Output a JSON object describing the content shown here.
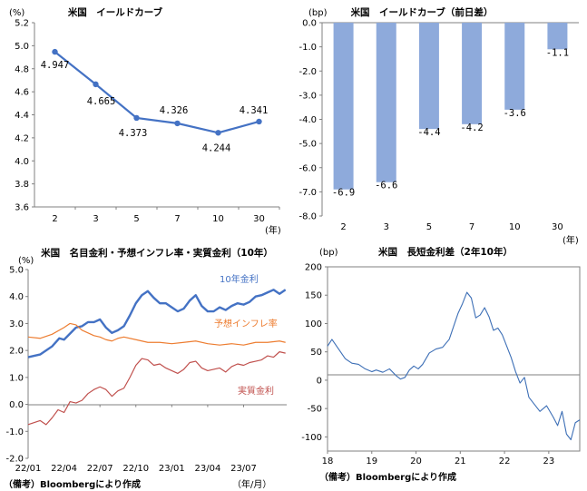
{
  "colors": {
    "line_blue": "#4472c4",
    "bar_blue": "#8eaadb",
    "orange": "#ed7d31",
    "red": "#c0504d",
    "spread_blue": "#3d6fb6",
    "axis": "#808080",
    "grid": "#d9d9d9"
  },
  "chart_data": [
    {
      "id": "yield_curve",
      "type": "line",
      "title": "米国　イールドカーブ",
      "ylabel": "(%)",
      "xlabel": "(年)",
      "categories": [
        "2",
        "3",
        "5",
        "7",
        "10",
        "30"
      ],
      "values": [
        4.947,
        4.665,
        4.373,
        4.326,
        4.244,
        4.341
      ],
      "value_labels": [
        "4.947",
        "4.665",
        "4.373",
        "4.326",
        "4.244",
        "4.341"
      ],
      "ylim": [
        3.6,
        5.2
      ],
      "yticks": [
        "3.6",
        "3.8",
        "4.0",
        "4.2",
        "4.4",
        "4.6",
        "4.8",
        "5.0",
        "5.2"
      ],
      "grid": false
    },
    {
      "id": "yield_change",
      "type": "bar",
      "title": "米国　イールドカーブ（前日差）",
      "ylabel": "(bp)",
      "xlabel": "(年)",
      "categories": [
        "2",
        "3",
        "5",
        "7",
        "10",
        "30"
      ],
      "values": [
        -6.9,
        -6.6,
        -4.4,
        -4.2,
        -3.6,
        -1.1
      ],
      "value_labels": [
        "-6.9",
        "-6.6",
        "-4.4",
        "-4.2",
        "-3.6",
        "-1.1"
      ],
      "ylim": [
        -8.0,
        0.0
      ],
      "yticks": [
        "0.0",
        "-1.0",
        "-2.0",
        "-3.0",
        "-4.0",
        "-5.0",
        "-6.0",
        "-7.0",
        "-8.0"
      ],
      "grid": false
    },
    {
      "id": "nominal_real",
      "type": "line",
      "title": "米国　名目金利・予想インフレ率・実質金利（10年）",
      "ylabel": "(%)",
      "xlabel": "（年/月）",
      "x_ticks": [
        "22/01",
        "22/04",
        "22/07",
        "22/10",
        "23/01",
        "23/04",
        "23/07"
      ],
      "ylim": [
        -2.0,
        5.0
      ],
      "yticks": [
        "5.0",
        "4.0",
        "3.0",
        "2.0",
        "1.0",
        "0.0",
        "-1.0",
        "-2.0"
      ],
      "x_range_months": [
        0,
        21.6
      ],
      "series": [
        {
          "name": "10年金利",
          "label": "10年金利",
          "x": [
            0,
            1,
            2,
            2.6,
            3,
            4,
            4.5,
            5,
            5.5,
            6,
            6.5,
            7,
            7.5,
            8,
            8.5,
            9,
            9.5,
            10,
            10.5,
            11,
            11.5,
            12,
            12.5,
            13,
            13.5,
            14,
            14.5,
            15,
            15.5,
            16,
            16.5,
            17,
            17.5,
            18,
            18.5,
            19,
            19.5,
            20,
            20.5,
            21,
            21.5
          ],
          "values": [
            1.75,
            1.85,
            2.15,
            2.45,
            2.4,
            2.85,
            2.9,
            3.05,
            3.05,
            3.15,
            2.85,
            2.65,
            2.75,
            2.9,
            3.3,
            3.75,
            4.05,
            4.2,
            3.95,
            3.75,
            3.75,
            3.6,
            3.45,
            3.55,
            3.85,
            4.05,
            3.65,
            3.45,
            3.45,
            3.6,
            3.5,
            3.65,
            3.75,
            3.7,
            3.8,
            4.0,
            4.05,
            4.15,
            4.25,
            4.1,
            4.25
          ]
        },
        {
          "name": "予想インフレ率",
          "label": "予想インフレ率",
          "x": [
            0,
            1,
            2,
            3,
            3.5,
            4,
            4.5,
            5,
            5.5,
            6,
            6.5,
            7,
            7.5,
            8,
            9,
            10,
            11,
            12,
            13,
            14,
            15,
            16,
            17,
            18,
            19,
            20,
            21,
            21.5
          ],
          "values": [
            2.5,
            2.45,
            2.6,
            2.85,
            3.0,
            2.95,
            2.75,
            2.65,
            2.55,
            2.5,
            2.4,
            2.35,
            2.45,
            2.5,
            2.4,
            2.3,
            2.3,
            2.25,
            2.3,
            2.35,
            2.25,
            2.2,
            2.25,
            2.2,
            2.3,
            2.3,
            2.35,
            2.3
          ]
        },
        {
          "name": "実質金利",
          "label": "実質金利",
          "x": [
            0,
            1,
            1.5,
            2,
            2.5,
            3,
            3.5,
            4,
            4.5,
            5,
            5.5,
            6,
            6.5,
            7,
            7.5,
            8,
            8.5,
            9,
            9.5,
            10,
            10.5,
            11,
            11.5,
            12,
            12.5,
            13,
            13.5,
            14,
            14.5,
            15,
            15.5,
            16,
            16.5,
            17,
            17.5,
            18,
            18.5,
            19,
            19.5,
            20,
            20.5,
            21,
            21.5
          ],
          "values": [
            -0.75,
            -0.6,
            -0.75,
            -0.5,
            -0.2,
            -0.3,
            0.1,
            0.05,
            0.15,
            0.4,
            0.55,
            0.65,
            0.55,
            0.3,
            0.5,
            0.6,
            1.0,
            1.45,
            1.7,
            1.65,
            1.45,
            1.5,
            1.35,
            1.25,
            1.15,
            1.3,
            1.55,
            1.6,
            1.35,
            1.25,
            1.3,
            1.35,
            1.2,
            1.4,
            1.5,
            1.45,
            1.55,
            1.6,
            1.65,
            1.8,
            1.75,
            1.95,
            1.9
          ]
        }
      ],
      "grid": false
    },
    {
      "id": "spread",
      "type": "line",
      "title": "米国　長短金利差（2年10年）",
      "ylabel": "(bp)",
      "x_ticks": [
        "18",
        "19",
        "20",
        "21",
        "22",
        "23"
      ],
      "ylim": [
        -125,
        200
      ],
      "yticks": [
        "200",
        "150",
        "100",
        "50",
        "0",
        "-50",
        "-100"
      ],
      "x_range_years": [
        18,
        23.7
      ],
      "series": [
        {
          "name": "長短金利差",
          "x": [
            18.0,
            18.1,
            18.25,
            18.4,
            18.55,
            18.7,
            18.85,
            19.0,
            19.1,
            19.25,
            19.4,
            19.55,
            19.65,
            19.75,
            19.85,
            19.95,
            20.05,
            20.15,
            20.3,
            20.45,
            20.6,
            20.75,
            20.85,
            20.95,
            21.05,
            21.15,
            21.25,
            21.35,
            21.45,
            21.55,
            21.65,
            21.75,
            21.85,
            21.95,
            22.05,
            22.15,
            22.25,
            22.35,
            22.45,
            22.55,
            22.65,
            22.8,
            22.95,
            23.1,
            23.2,
            23.3,
            23.4,
            23.5,
            23.6,
            23.7
          ],
          "values": [
            60,
            72,
            55,
            38,
            30,
            28,
            20,
            15,
            18,
            14,
            20,
            8,
            2,
            5,
            18,
            25,
            20,
            28,
            48,
            55,
            58,
            72,
            95,
            118,
            135,
            155,
            145,
            110,
            115,
            128,
            112,
            88,
            92,
            80,
            60,
            40,
            15,
            -5,
            5,
            -30,
            -40,
            -55,
            -45,
            -65,
            -80,
            -55,
            -95,
            -105,
            -75,
            -70
          ]
        }
      ],
      "grid": false
    }
  ],
  "notes": {
    "source_left": "（備考）Bloombergにより作成",
    "source_right": "（備考）Bloombergにより作成"
  }
}
